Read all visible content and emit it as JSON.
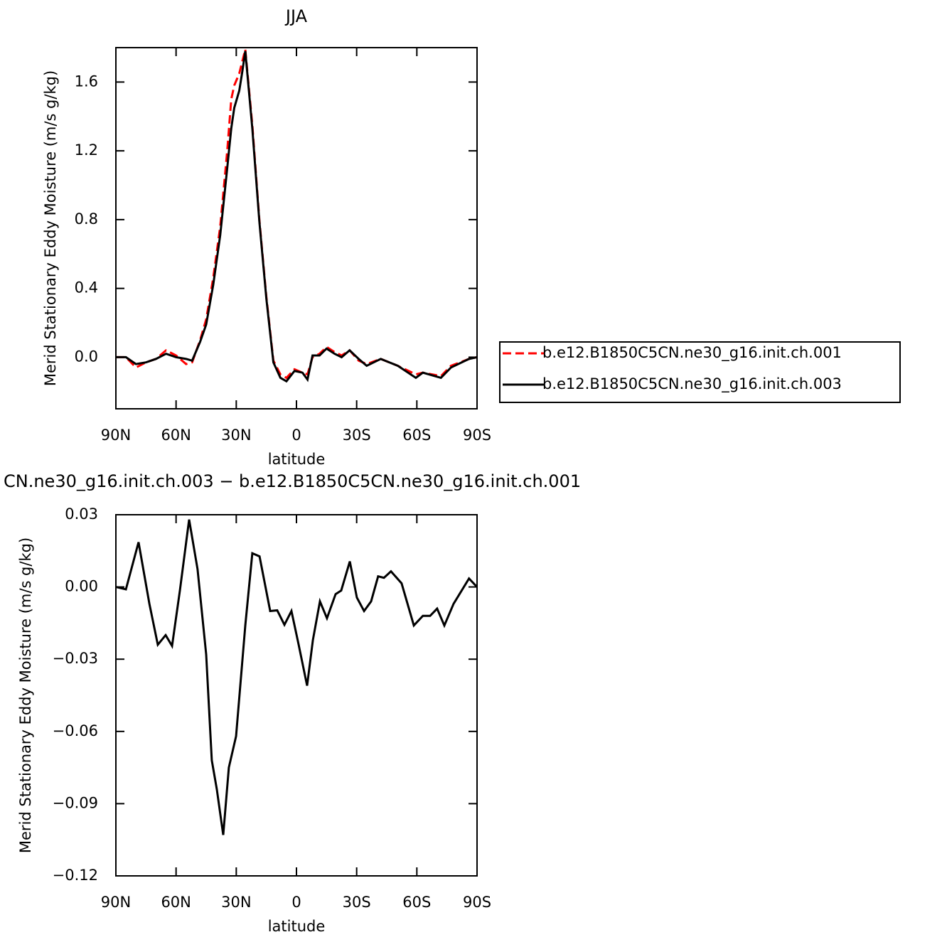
{
  "chart_data": [
    {
      "type": "line",
      "title": "JJA",
      "xlabel": "latitude",
      "ylabel": "Merid Stationary Eddy Moisture (m/s g/kg)",
      "x": [
        90,
        85,
        80,
        75,
        70,
        65,
        60,
        55,
        52,
        48,
        45,
        41.5,
        38,
        34.5,
        32.5,
        31,
        28.5,
        27,
        25.5,
        22,
        18.5,
        15,
        11.5,
        8,
        5,
        1,
        -3,
        -5.5,
        -8,
        -11.5,
        -15,
        -19,
        -22.5,
        -26.5,
        -31,
        -35,
        -42,
        -50.5,
        -59.5,
        -63,
        -72,
        -77,
        -86,
        -90
      ],
      "series": [
        {
          "name": "b.e12.B1850C5CN.ne30_g16.init.ch.001",
          "color": "#ff0000",
          "linestyle": "dashed",
          "values": [
            0,
            0,
            -0.06,
            -0.03,
            -0.01,
            0.04,
            0.01,
            -0.04,
            -0.03,
            0.1,
            0.22,
            0.46,
            0.76,
            1.2,
            1.5,
            1.58,
            1.65,
            1.72,
            1.79,
            1.35,
            0.8,
            0.35,
            -0.02,
            -0.1,
            -0.12,
            -0.07,
            -0.09,
            -0.1,
            0.0,
            0.02,
            0.06,
            0.03,
            0.01,
            0.04,
            -0.02,
            -0.04,
            -0.01,
            -0.05,
            -0.1,
            -0.09,
            -0.11,
            -0.05,
            -0.01,
            0
          ]
        },
        {
          "name": "b.e12.B1850C5CN.ne30_g16.init.ch.003",
          "color": "#000000",
          "linestyle": "solid",
          "values": [
            0,
            0,
            -0.04,
            -0.03,
            -0.01,
            0.02,
            0,
            -0.01,
            -0.02,
            0.09,
            0.19,
            0.42,
            0.71,
            1.1,
            1.33,
            1.45,
            1.55,
            1.66,
            1.78,
            1.33,
            0.79,
            0.34,
            -0.03,
            -0.12,
            -0.14,
            -0.08,
            -0.09,
            -0.13,
            0.01,
            0.01,
            0.05,
            0.02,
            0,
            0.04,
            -0.01,
            -0.05,
            -0.01,
            -0.05,
            -0.12,
            -0.09,
            -0.12,
            -0.06,
            -0.01,
            0
          ]
        }
      ],
      "xlim": [
        90,
        -90
      ],
      "xticks": [
        {
          "value": 90,
          "label": "90N"
        },
        {
          "value": 60,
          "label": "60N"
        },
        {
          "value": 30,
          "label": "30N"
        },
        0,
        {
          "value": -30,
          "label": "30S"
        },
        {
          "value": -60,
          "label": "60S"
        },
        {
          "value": -90,
          "label": "90S"
        }
      ],
      "ylim": [
        -0.3,
        1.8
      ],
      "yticks": [
        {
          "value": 0,
          "label": "0.0"
        },
        0.4,
        0.8,
        1.2,
        1.6
      ]
    },
    {
      "type": "line",
      "title": "CN.ne30_g16.init.ch.003 − b.e12.B1850C5CN.ne30_g16.init.ch.001",
      "xlabel": "latitude",
      "ylabel": "Merid Stationary Eddy Moisture (m/s g/kg)",
      "x": [
        90,
        85,
        78.7,
        73.3,
        69.1,
        65.2,
        62,
        58.1,
        53.5,
        49.3,
        45,
        42.2,
        39.7,
        36.5,
        33.7,
        30.1,
        25.5,
        22,
        18.4,
        13.1,
        9.6,
        6,
        2.5,
        -1.1,
        -5.3,
        -8.2,
        -11.7,
        -15.2,
        -19.5,
        -22.3,
        -26.6,
        -30.1,
        -33.7,
        -37.2,
        -40.7,
        -43.6,
        -47.1,
        -52.4,
        -58.5,
        -63,
        -66.6,
        -70.1,
        -73.7,
        -78.3,
        -86,
        -90
      ],
      "series": [
        {
          "color": "#000000",
          "linestyle": "solid",
          "values": [
            0,
            -0.001,
            0.0186,
            -0.007,
            -0.024,
            -0.02,
            -0.0245,
            -0.0015,
            0.028,
            0.0074,
            -0.028,
            -0.072,
            -0.084,
            -0.103,
            -0.075,
            -0.062,
            -0.016,
            0.014,
            0.0127,
            -0.01,
            -0.0097,
            -0.0157,
            -0.01,
            -0.024,
            -0.041,
            -0.022,
            -0.006,
            -0.013,
            -0.003,
            -0.0015,
            0.0106,
            -0.0044,
            -0.01,
            -0.006,
            0.0044,
            0.0038,
            0.0065,
            0.0015,
            -0.016,
            -0.012,
            -0.012,
            -0.009,
            -0.016,
            -0.007,
            0.0035,
            0
          ]
        }
      ],
      "xlim": [
        90,
        -90
      ],
      "xticks": [
        {
          "value": 90,
          "label": "90N"
        },
        {
          "value": 60,
          "label": "60N"
        },
        {
          "value": 30,
          "label": "30N"
        },
        0,
        {
          "value": -30,
          "label": "30S"
        },
        {
          "value": -60,
          "label": "60S"
        },
        {
          "value": -90,
          "label": "90S"
        }
      ],
      "ylim": [
        -0.12,
        0.03
      ],
      "yticks": [
        0.03,
        {
          "value": 0,
          "label": "0.00"
        },
        {
          "value": -0.03,
          "label": "−0.03"
        },
        {
          "value": -0.06,
          "label": "−0.06"
        },
        {
          "value": -0.09,
          "label": "−0.09"
        },
        {
          "value": -0.12,
          "label": "−0.12"
        }
      ]
    }
  ]
}
